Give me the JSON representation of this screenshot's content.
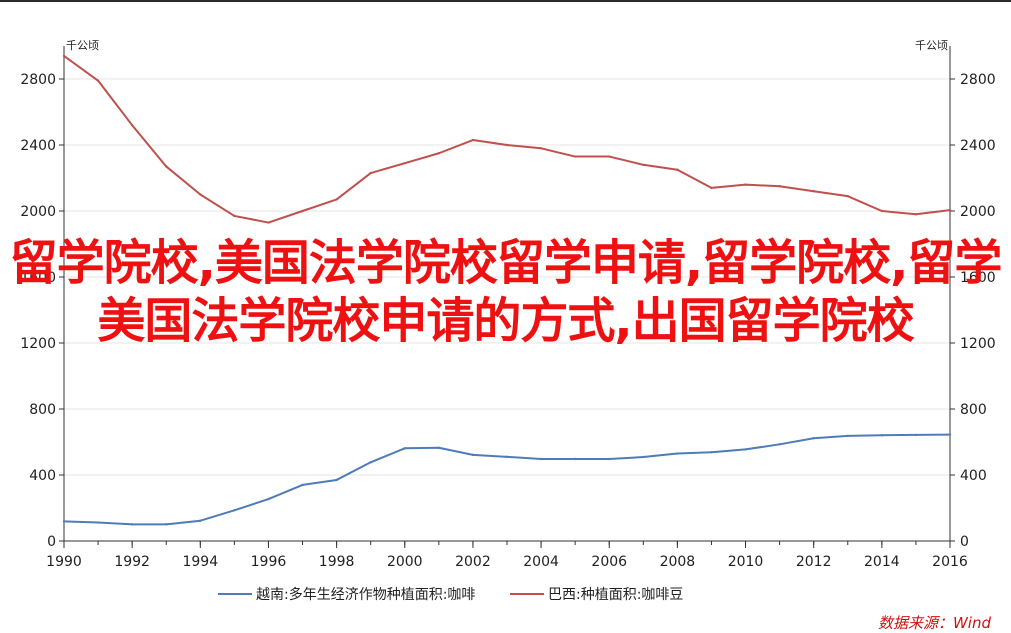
{
  "chart_data": {
    "type": "line",
    "unit_left": "千公顷",
    "unit_right": "千公顷",
    "x": [
      1990,
      1991,
      1992,
      1993,
      1994,
      1995,
      1996,
      1997,
      1998,
      1999,
      2000,
      2001,
      2002,
      2003,
      2004,
      2005,
      2006,
      2007,
      2008,
      2009,
      2010,
      2011,
      2012,
      2013,
      2014,
      2015,
      2016
    ],
    "xticks": [
      "1990",
      "1992",
      "1994",
      "1996",
      "1998",
      "2000",
      "2002",
      "2004",
      "2006",
      "2008",
      "2010",
      "2012",
      "2014",
      "2016"
    ],
    "xlim": [
      1990,
      2016
    ],
    "ylim": [
      0,
      3000
    ],
    "yticks": [
      "0",
      "400",
      "800",
      "1200",
      "1600",
      "2000",
      "2400",
      "2800"
    ],
    "series": [
      {
        "name": "越南:多年生经济作物种植面积:咖啡",
        "color": "#4f7cb8",
        "values": [
          119,
          112,
          101,
          101,
          123,
          186,
          254,
          340,
          370,
          477,
          562,
          565,
          522,
          510,
          497,
          497,
          497,
          509,
          530,
          538,
          555,
          586,
          623,
          637,
          641,
          643,
          645
        ]
      },
      {
        "name": "巴西:种植面积:咖啡豆",
        "color": "#c0504d",
        "values": [
          2940,
          2790,
          2520,
          2270,
          2100,
          1970,
          1930,
          2000,
          2070,
          2230,
          2290,
          2350,
          2430,
          2400,
          2380,
          2330,
          2330,
          2280,
          2250,
          2140,
          2160,
          2150,
          2120,
          2090,
          2000,
          1980,
          2005
        ]
      }
    ],
    "legend": "bottom",
    "grid": true
  },
  "overlay": {
    "title": "留学院校,美国法学院校留学申请,留学院校,留学美国法学院校申请的方式,出国留学院校"
  },
  "source": "数据来源：Wind"
}
